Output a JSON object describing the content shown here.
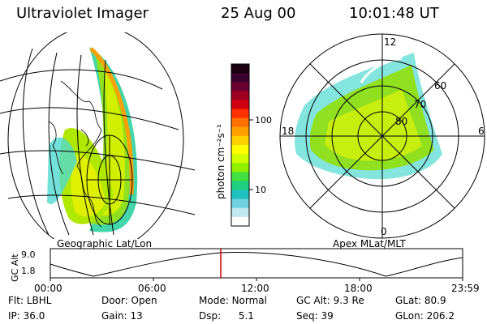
{
  "header": {
    "title": "Ultraviolet Imager",
    "date": "25 Aug 00",
    "time": "10:01:48 UT"
  },
  "left_panel": {
    "caption": "Geographic Lat/Lon"
  },
  "right_panel": {
    "caption": "Apex MLat/MLT",
    "mlt_labels": [
      "12",
      "18",
      "6",
      "0"
    ],
    "mlat_labels": [
      "60",
      "70",
      "80"
    ]
  },
  "colorbar": {
    "unit_label": "photon cm⁻²s⁻¹",
    "ticks": [
      "100",
      "10"
    ],
    "colors": [
      "#1a0010",
      "#3a0030",
      "#6a0030",
      "#a00020",
      "#d00010",
      "#ff3000",
      "#ff7000",
      "#ffa000",
      "#ffd000",
      "#ffff00",
      "#d0ff00",
      "#90f000",
      "#40e040",
      "#20d080",
      "#20c0c0",
      "#70d0e0",
      "#c0e8f0",
      "#ffffff"
    ]
  },
  "timeline": {
    "axis_title": "GC Alt",
    "y_ticks": [
      "9.0",
      "1.8"
    ],
    "x_ticks": [
      "00:00",
      "06:00",
      "12:00",
      "18:00",
      "23:59"
    ],
    "marker_color": "#cc0000"
  },
  "info": {
    "flt_label": "Flt:",
    "flt_value": "LBHL",
    "ip_label": "IP:",
    "ip_value": "36.0",
    "door_label": "Door:",
    "door_value": "Open",
    "gain_label": "Gain:",
    "gain_value": "13",
    "mode_label": "Mode:",
    "mode_value": "Normal",
    "dsp_label": "Dsp:",
    "dsp_value": "5.1",
    "gcalt_label": "GC Alt:",
    "gcalt_value": "9.3 Re",
    "seq_label": "Seq:",
    "seq_value": "39",
    "glat_label": "GLat:",
    "glat_value": "80.9",
    "glon_label": "GLon:",
    "glon_value": "206.2"
  }
}
